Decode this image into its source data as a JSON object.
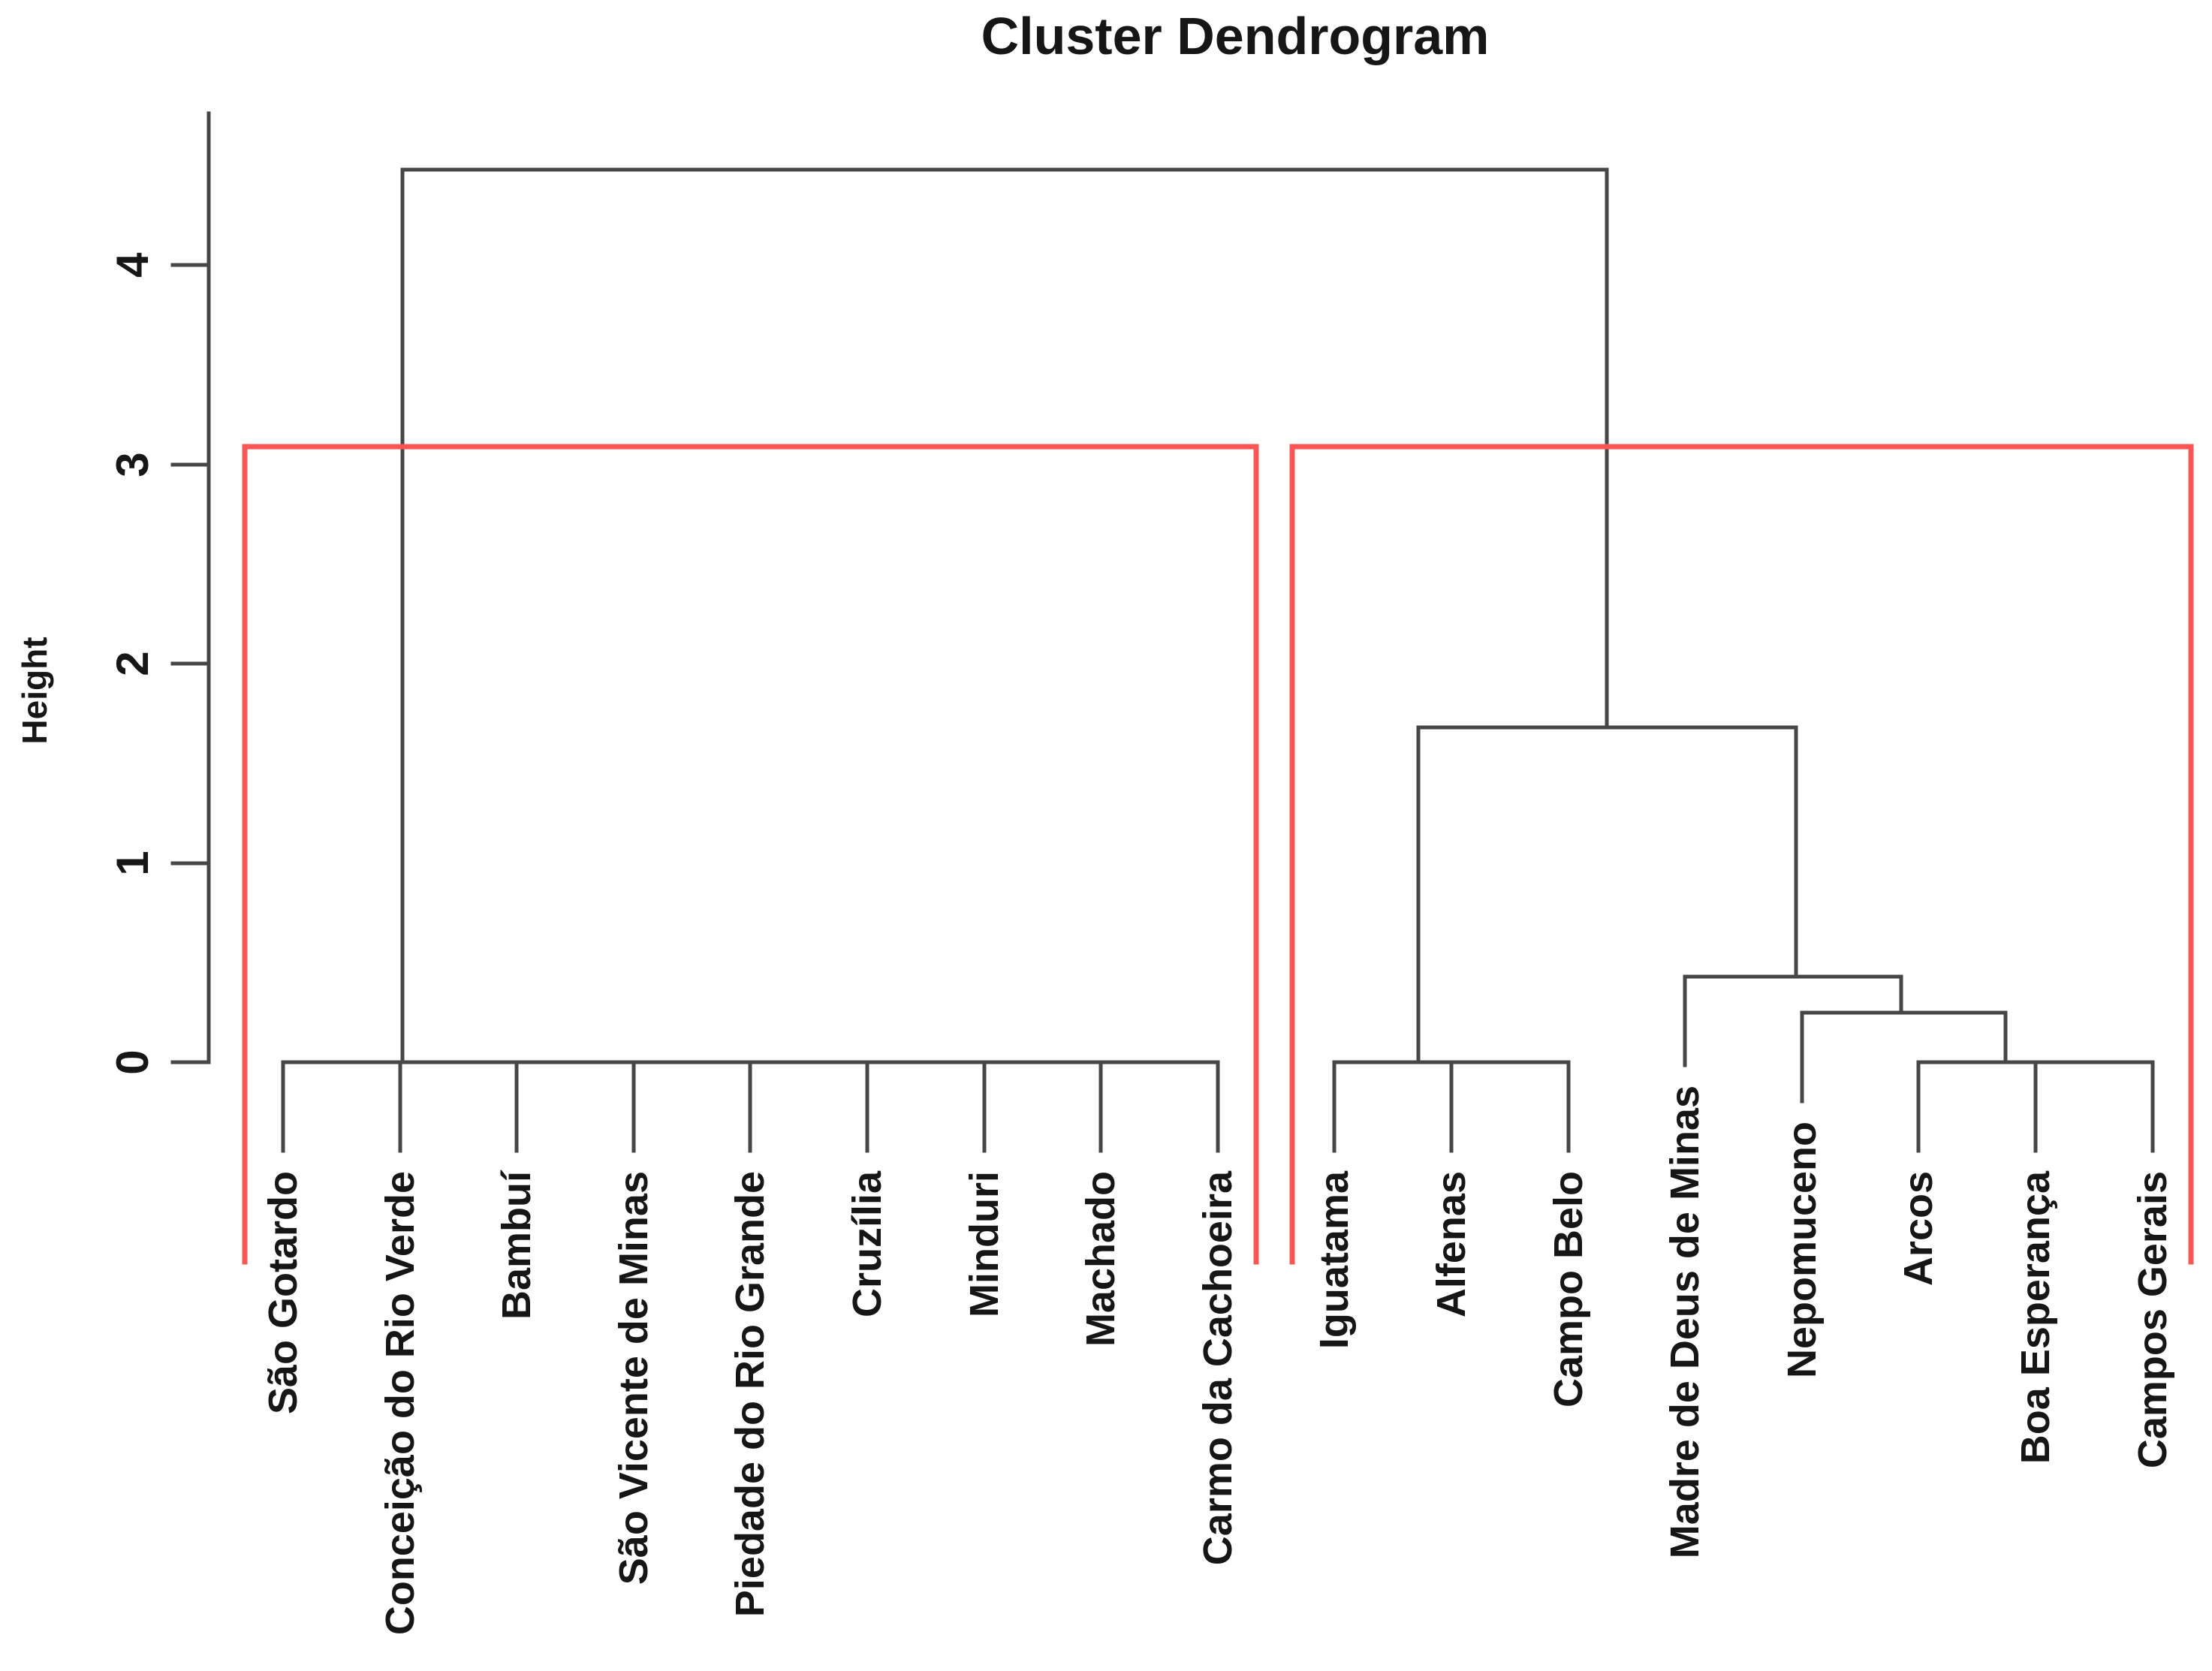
{
  "title": "Cluster Dendrogram",
  "y_axis": {
    "label": "Height",
    "ticks": [
      "0",
      "1",
      "2",
      "3",
      "4"
    ]
  },
  "chart_data": {
    "type": "dendrogram",
    "title": "Cluster Dendrogram",
    "ylabel": "Height",
    "yticks": [
      0,
      1,
      2,
      3,
      4
    ],
    "ylim": [
      0,
      4.76
    ],
    "grid": false,
    "leaves": [
      {
        "label": "São Gotardo",
        "merge_height": 0
      },
      {
        "label": "Conceição do Rio Verde",
        "merge_height": 0
      },
      {
        "label": "Bambuí",
        "merge_height": 0
      },
      {
        "label": "São Vicente de Minas",
        "merge_height": 0
      },
      {
        "label": "Piedade do Rio Grande",
        "merge_height": 0
      },
      {
        "label": "Cruzília",
        "merge_height": 0
      },
      {
        "label": "Minduri",
        "merge_height": 0
      },
      {
        "label": "Machado",
        "merge_height": 0
      },
      {
        "label": "Carmo da Cachoeira",
        "merge_height": 0
      },
      {
        "label": "Iguatama",
        "merge_height": 0
      },
      {
        "label": "Alfenas",
        "merge_height": 0
      },
      {
        "label": "Campo Belo",
        "merge_height": 0
      },
      {
        "label": "Madre de Deus de Minas",
        "merge_height": 0.43
      },
      {
        "label": "Nepomuceno",
        "merge_height": 0.25
      },
      {
        "label": "Arcos",
        "merge_height": 0
      },
      {
        "label": "Boa Esperança",
        "merge_height": 0
      },
      {
        "label": "Campos Gerais",
        "merge_height": 0
      }
    ],
    "hang": 0.445,
    "bars": [
      {
        "h": 4.48,
        "from": 2.02,
        "to": 12.33
      },
      {
        "h": 1.68,
        "from": 10.72,
        "to": 13.95
      },
      {
        "h": 0.43,
        "from": 13.0,
        "to": 14.85
      },
      {
        "h": 0.25,
        "from": 14.0,
        "to": 15.74
      },
      {
        "h": 0,
        "from": 1,
        "to": 9
      },
      {
        "h": 0,
        "from": 10,
        "to": 12
      },
      {
        "h": 0,
        "from": 15,
        "to": 17
      }
    ],
    "drops": [
      {
        "x": 2.02,
        "h1": 4.48,
        "h2": 0
      },
      {
        "x": 12.33,
        "h1": 4.48,
        "h2": 1.68
      },
      {
        "x": 10.72,
        "h1": 1.68,
        "h2": 0
      },
      {
        "x": 13.95,
        "h1": 1.68,
        "h2": 0.43
      },
      {
        "x": 14.85,
        "h1": 0.43,
        "h2": 0.25
      },
      {
        "x": 15.74,
        "h1": 0.25,
        "h2": 0
      }
    ],
    "clusters": [
      {
        "from": 0.67,
        "to": 9.33,
        "top": 3.09,
        "bottom": -1.0
      },
      {
        "from": 9.64,
        "to": 17.33,
        "top": 3.09,
        "bottom": -1.0
      }
    ],
    "colors": {
      "tree": "#464646",
      "cluster_box": "#fa5656",
      "text": "#161616",
      "background": "#ffffff"
    }
  }
}
